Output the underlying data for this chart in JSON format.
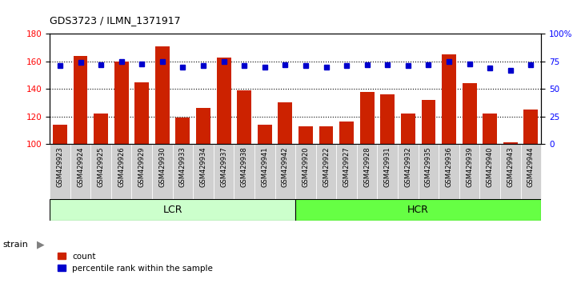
{
  "title": "GDS3723 / ILMN_1371917",
  "samples": [
    "GSM429923",
    "GSM429924",
    "GSM429925",
    "GSM429926",
    "GSM429929",
    "GSM429930",
    "GSM429933",
    "GSM429934",
    "GSM429937",
    "GSM429938",
    "GSM429941",
    "GSM429942",
    "GSM429920",
    "GSM429922",
    "GSM429927",
    "GSM429928",
    "GSM429931",
    "GSM429932",
    "GSM429935",
    "GSM429936",
    "GSM429939",
    "GSM429940",
    "GSM429943",
    "GSM429944"
  ],
  "counts": [
    114,
    164,
    122,
    160,
    145,
    171,
    119,
    126,
    163,
    139,
    114,
    130,
    113,
    113,
    116,
    138,
    136,
    122,
    132,
    165,
    144,
    122,
    101,
    125
  ],
  "percentiles": [
    71,
    74,
    72,
    75,
    73,
    75,
    70,
    71,
    75,
    71,
    70,
    72,
    71,
    70,
    71,
    72,
    72,
    71,
    72,
    75,
    73,
    69,
    67,
    72
  ],
  "group_labels": [
    "LCR",
    "HCR"
  ],
  "group_sizes": [
    12,
    12
  ],
  "group_colors": [
    "#ccffcc",
    "#66ff44"
  ],
  "bar_color": "#cc2200",
  "dot_color": "#0000cc",
  "ylim_left": [
    100,
    180
  ],
  "ylim_right": [
    0,
    100
  ],
  "yticks_left": [
    100,
    120,
    140,
    160,
    180
  ],
  "yticks_right": [
    0,
    25,
    50,
    75,
    100
  ],
  "yticklabels_right": [
    "0",
    "25",
    "50",
    "75",
    "100%"
  ],
  "grid_values": [
    120,
    140,
    160
  ],
  "legend_count_label": "count",
  "legend_pct_label": "percentile rank within the sample",
  "strain_label": "strain",
  "tick_bg_color": "#d0d0d0",
  "plot_bg_color": "#ffffff"
}
